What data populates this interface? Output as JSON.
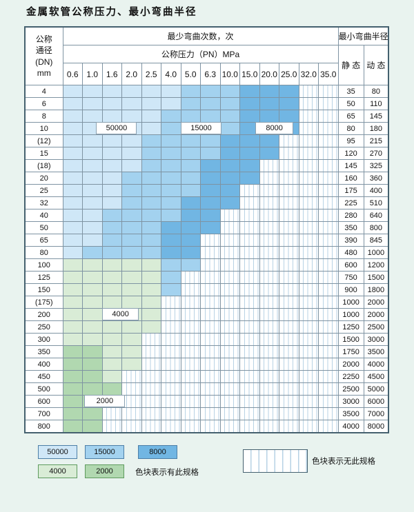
{
  "page": {
    "title": "金属软管公称压力、最小弯曲半径"
  },
  "colors": {
    "c50000": "#cfe7f7",
    "c15000": "#a3d2ef",
    "c8000": "#71b6e3",
    "c4000": "#d9ecd6",
    "c2000": "#b1d8b0",
    "stripe_line": "#b7d2e4",
    "page_bg": "#e9f3ef",
    "grid_line": "#7e93a2"
  },
  "table": {
    "header": {
      "dn_lines": [
        "公称",
        "通径",
        "(DN)",
        "mm"
      ],
      "bend_times_label": "最少弯曲次数，次",
      "pressure_label": "公称压力（PN）MPa",
      "pressure_values": [
        "0.6",
        "1.0",
        "1.6",
        "2.0",
        "2.5",
        "4.0",
        "5.0",
        "6.3",
        "10.0",
        "15.0",
        "20.0",
        "25.0",
        "32.0",
        "35.0"
      ],
      "radius_label": "最小弯曲半径",
      "static_label": "静 态",
      "dynamic_label": "动 态"
    },
    "legend_codes": {
      "A": "50000",
      "B": "15000",
      "C": "8000",
      "D": "4000",
      "E": "2000",
      "X": "no-spec"
    },
    "rows": [
      {
        "dn": "4",
        "cells": "AAAAAABBBCCCXX",
        "static": "35",
        "dynamic": "80"
      },
      {
        "dn": "6",
        "cells": "AAAAAABBBCCCXX",
        "static": "50",
        "dynamic": "110"
      },
      {
        "dn": "8",
        "cells": "AAAAABBBBCCCXX",
        "static": "65",
        "dynamic": "145"
      },
      {
        "dn": "10",
        "cells": "AAAAABBBBCCCXX",
        "static": "80",
        "dynamic": "180"
      },
      {
        "dn": "(12)",
        "cells": "AAAABBBBCCCXXX",
        "static": "95",
        "dynamic": "215"
      },
      {
        "dn": "15",
        "cells": "AAAABBBBCCCXXX",
        "static": "120",
        "dynamic": "270"
      },
      {
        "dn": "(18)",
        "cells": "AAAABBBCCCXXXX",
        "static": "145",
        "dynamic": "325"
      },
      {
        "dn": "20",
        "cells": "AAABBBBCCCXXXX",
        "static": "160",
        "dynamic": "360"
      },
      {
        "dn": "25",
        "cells": "AAABBBBCCXXXXX",
        "static": "175",
        "dynamic": "400"
      },
      {
        "dn": "32",
        "cells": "AAABBBCCCXXXXX",
        "static": "225",
        "dynamic": "510"
      },
      {
        "dn": "40",
        "cells": "AABBBBCCXXXXXX",
        "static": "280",
        "dynamic": "640"
      },
      {
        "dn": "50",
        "cells": "AABBBCCCXXXXXX",
        "static": "350",
        "dynamic": "800"
      },
      {
        "dn": "65",
        "cells": "AABBBCCXXXXXXX",
        "static": "390",
        "dynamic": "845"
      },
      {
        "dn": "80",
        "cells": "ABBBBCCXXXXXXX",
        "static": "480",
        "dynamic": "1000"
      },
      {
        "dn": "100",
        "cells": "DDDDDBBXXXXXXX",
        "static": "600",
        "dynamic": "1200"
      },
      {
        "dn": "125",
        "cells": "DDDDDBXXXXXXXX",
        "static": "750",
        "dynamic": "1500"
      },
      {
        "dn": "150",
        "cells": "DDDDDBXXXXXXXX",
        "static": "900",
        "dynamic": "1800"
      },
      {
        "dn": "(175)",
        "cells": "DDDDDXXXXXXXXX",
        "static": "1000",
        "dynamic": "2000"
      },
      {
        "dn": "200",
        "cells": "DDDDDXXXXXXXXX",
        "static": "1000",
        "dynamic": "2000"
      },
      {
        "dn": "250",
        "cells": "DDDDDXXXXXXXXX",
        "static": "1250",
        "dynamic": "2500"
      },
      {
        "dn": "300",
        "cells": "DDDDXXXXXXXXXX",
        "static": "1500",
        "dynamic": "3000"
      },
      {
        "dn": "350",
        "cells": "EEDDXXXXXXXXXX",
        "static": "1750",
        "dynamic": "3500"
      },
      {
        "dn": "400",
        "cells": "EEDDXXXXXXXXXX",
        "static": "2000",
        "dynamic": "4000"
      },
      {
        "dn": "450",
        "cells": "EEDXXXXXXXXXXX",
        "static": "2250",
        "dynamic": "4500"
      },
      {
        "dn": "500",
        "cells": "EEEXXXXXXXXXXX",
        "static": "2500",
        "dynamic": "5000"
      },
      {
        "dn": "600",
        "cells": "EEEXXXXXXXXXXX",
        "static": "3000",
        "dynamic": "6000"
      },
      {
        "dn": "700",
        "cells": "EEXXXXXXXXXXXX",
        "static": "3500",
        "dynamic": "7000"
      },
      {
        "dn": "800",
        "cells": "EEXXXXXXXXXXXX",
        "static": "4000",
        "dynamic": "8000"
      }
    ],
    "overlays": [
      {
        "text": "50000",
        "row": 3,
        "col": 1.7,
        "w": 2.0
      },
      {
        "text": "15000",
        "row": 3,
        "col": 6.0,
        "w": 2.0
      },
      {
        "text": "8000",
        "row": 3,
        "col": 9.8,
        "w": 1.85
      },
      {
        "text": "4000",
        "row": 18,
        "col": 2.0,
        "w": 1.8
      },
      {
        "text": "2000",
        "row": 25,
        "col": 1.1,
        "w": 2.0
      }
    ]
  },
  "legend": {
    "items": [
      {
        "label": "50000",
        "code": "A"
      },
      {
        "label": "15000",
        "code": "B"
      },
      {
        "label": "8000",
        "code": "C"
      },
      {
        "label": "4000",
        "code": "D"
      },
      {
        "label": "2000",
        "code": "E"
      }
    ],
    "has_spec_text": "色块表示有此规格",
    "no_spec_text": "色块表示无此规格"
  }
}
